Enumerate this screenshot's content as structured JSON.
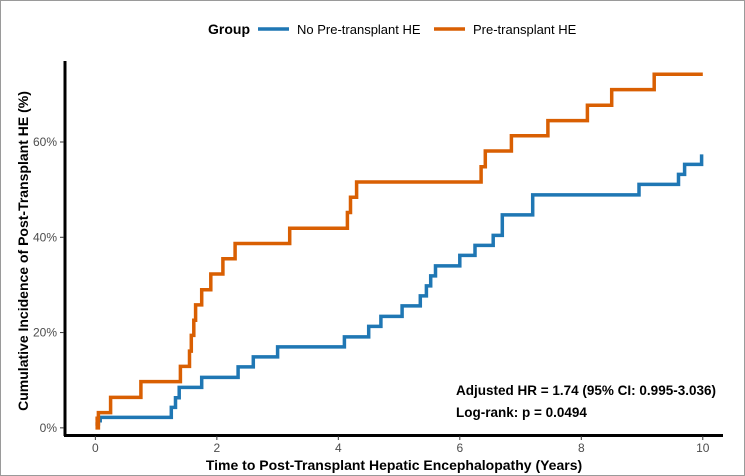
{
  "chart_data": {
    "type": "line",
    "subtype": "step",
    "xlabel": "Time to Post-Transplant Hepatic Encephalopathy (Years)",
    "ylabel": "Cumulative Incidence of Post-Transplant HE (%)",
    "xlim": [
      -0.5,
      10.3
    ],
    "ylim": [
      -1.5,
      77
    ],
    "x_ticks": [
      0,
      2,
      4,
      6,
      8,
      10
    ],
    "x_tick_labels": [
      "0",
      "2",
      "4",
      "6",
      "8",
      "10"
    ],
    "y_ticks": [
      0,
      20,
      40,
      60
    ],
    "y_tick_labels": [
      "0%",
      "20%",
      "40%",
      "60%"
    ],
    "grid": false,
    "legend": {
      "title": "Group",
      "position": "top",
      "entries": [
        "No Pre-transplant HE",
        "Pre-transplant HE"
      ]
    },
    "annotations": [
      "Adjusted HR = 1.74 (95% CI: 0.995-3.036)",
      "Log-rank: p = 0.0494"
    ],
    "series": [
      {
        "name": "No Pre-transplant HE",
        "color": "#1f77b4",
        "x": [
          0,
          0.05,
          0.08,
          1.25,
          1.32,
          1.38,
          1.43,
          1.75,
          2.35,
          2.6,
          3.0,
          4.1,
          4.5,
          4.7,
          5.05,
          5.35,
          5.45,
          5.52,
          5.6,
          6.0,
          6.25,
          6.3,
          6.55,
          6.7,
          7.2,
          8.95,
          9.6,
          9.7,
          9.98
        ],
        "y": [
          0.8,
          1.5,
          2.2,
          4.3,
          6.3,
          8.5,
          8.5,
          10.6,
          12.8,
          14.9,
          17.0,
          19.1,
          21.3,
          23.4,
          25.6,
          27.7,
          29.8,
          31.9,
          34.0,
          36.2,
          38.3,
          38.3,
          40.4,
          44.7,
          48.9,
          51.1,
          53.2,
          55.3,
          57.4
        ]
      },
      {
        "name": "Pre-transplant HE",
        "color": "#d95f02",
        "x": [
          0,
          0.03,
          0.05,
          0.25,
          0.75,
          1.4,
          1.55,
          1.58,
          1.62,
          1.65,
          1.68,
          1.75,
          1.9,
          2.1,
          2.3,
          3.2,
          4.15,
          4.2,
          4.3,
          6.35,
          6.42,
          6.85,
          7.45,
          8.1,
          8.5,
          9.2,
          10.0
        ],
        "y": [
          2.0,
          0.0,
          3.2,
          6.4,
          9.7,
          12.9,
          16.1,
          19.4,
          22.6,
          25.8,
          25.8,
          29.0,
          32.3,
          35.5,
          38.7,
          41.9,
          45.2,
          48.4,
          51.6,
          54.8,
          58.1,
          61.3,
          64.5,
          67.7,
          71.0,
          74.2,
          74.2
        ]
      }
    ]
  }
}
